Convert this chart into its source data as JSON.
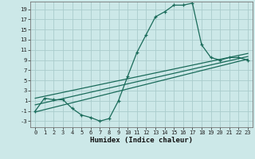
{
  "xlabel": "Humidex (Indice chaleur)",
  "bg_color": "#cce8e8",
  "grid_color": "#aacccc",
  "line_color": "#1a6b5a",
  "xlim": [
    -0.5,
    23.5
  ],
  "ylim": [
    -4.2,
    20.5
  ],
  "yticks": [
    -3,
    -1,
    1,
    3,
    5,
    7,
    9,
    11,
    13,
    15,
    17,
    19
  ],
  "xticks": [
    0,
    1,
    2,
    3,
    4,
    5,
    6,
    7,
    8,
    9,
    10,
    11,
    12,
    13,
    14,
    15,
    16,
    17,
    18,
    19,
    20,
    21,
    22,
    23
  ],
  "line1_x": [
    0,
    1,
    2,
    3,
    4,
    5,
    6,
    7,
    8,
    9,
    10,
    11,
    12,
    13,
    14,
    15,
    16,
    17,
    18,
    19,
    20,
    21,
    22,
    23
  ],
  "line1_y": [
    -1.0,
    1.5,
    1.2,
    1.2,
    -0.5,
    -1.8,
    -2.3,
    -3.0,
    -2.5,
    1.0,
    5.8,
    10.5,
    14.0,
    17.5,
    18.5,
    19.8,
    19.8,
    20.2,
    12.0,
    9.5,
    9.0,
    9.5,
    9.5,
    9.0
  ],
  "line2_x": [
    0,
    23
  ],
  "line2_y": [
    -1.2,
    9.2
  ],
  "line3_x": [
    0,
    23
  ],
  "line3_y": [
    0.2,
    9.7
  ],
  "line4_x": [
    0,
    23
  ],
  "line4_y": [
    1.5,
    10.3
  ]
}
